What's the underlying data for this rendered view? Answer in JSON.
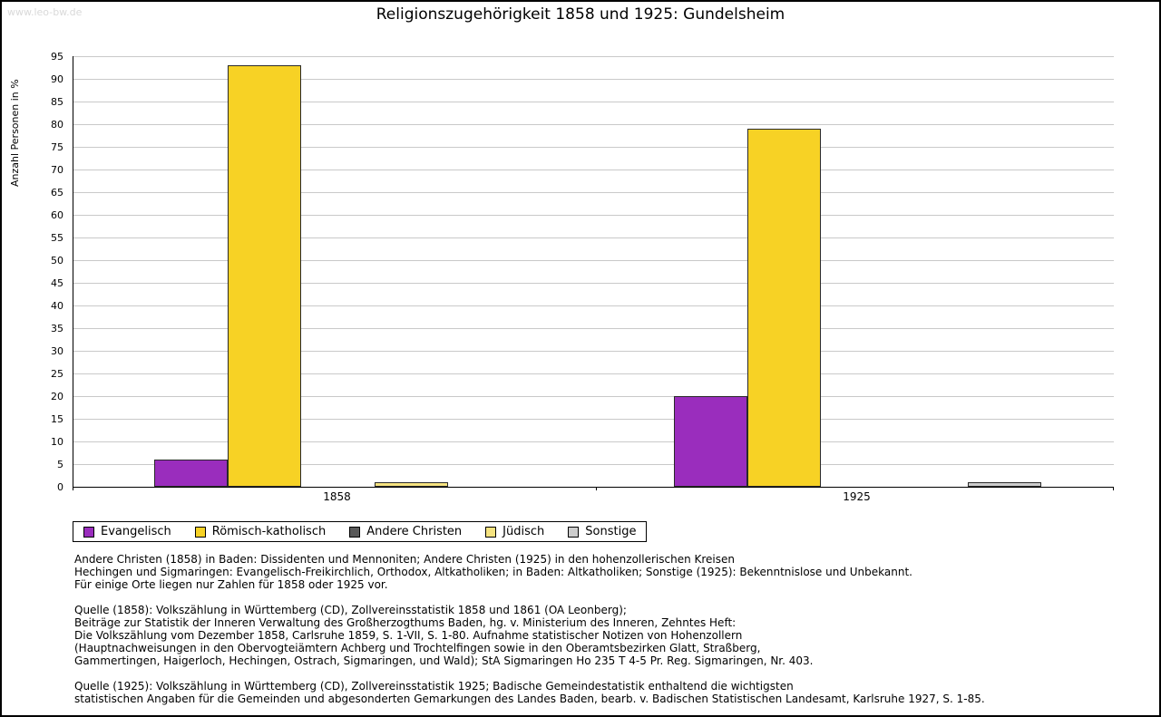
{
  "watermark": "www.leo-bw.de",
  "title": "Religionszugehörigkeit 1858 und 1925: Gundelsheim",
  "chart_data": {
    "type": "bar",
    "title": "Religionszugehörigkeit 1858 und 1925: Gundelsheim",
    "xlabel": "",
    "ylabel": "Anzahl Personen in %",
    "ylim": [
      0,
      95
    ],
    "ytick_step": 5,
    "grid": true,
    "legend_position": "bottom-left",
    "categories": [
      "1858",
      "1925"
    ],
    "series": [
      {
        "name": "Evangelisch",
        "color": "#9a2dbd",
        "values": [
          6,
          20
        ]
      },
      {
        "name": "Römisch-katholisch",
        "color": "#f7d225",
        "values": [
          93,
          79
        ]
      },
      {
        "name": "Andere Christen",
        "color": "#595959",
        "values": [
          0,
          0
        ]
      },
      {
        "name": "Jüdisch",
        "color": "#f6e380",
        "values": [
          1,
          0
        ]
      },
      {
        "name": "Sonstige",
        "color": "#cccccc",
        "values": [
          0,
          1
        ]
      }
    ]
  },
  "footnotes": [
    "Andere Christen (1858) in Baden: Dissidenten und Mennoniten; Andere Christen (1925) in den hohenzollerischen Kreisen",
    "Hechingen und Sigmaringen: Evangelisch-Freikirchlich, Orthodox, Altkatholiken; in Baden: Altkatholiken; Sonstige (1925): Bekenntnislose und Unbekannt.",
    "Für einige Orte liegen nur Zahlen für 1858 oder 1925 vor.",
    "",
    "Quelle (1858): Volkszählung in Württemberg (CD), Zollvereinsstatistik 1858 und 1861 (OA Leonberg);",
    "Beiträge zur Statistik der Inneren Verwaltung des Großherzogthums Baden, hg. v. Ministerium des Inneren, Zehntes Heft:",
    "Die Volkszählung vom Dezember 1858, Carlsruhe 1859, S. 1-VII, S. 1-80. Aufnahme statistischer Notizen von Hohenzollern",
    "(Hauptnachweisungen in den Obervogteiämtern Achberg und Trochtelfingen sowie in den Oberamtsbezirken Glatt, Straßberg,",
    "Gammertingen, Haigerloch, Hechingen, Ostrach, Sigmaringen, und Wald); StA Sigmaringen Ho 235 T 4-5 Pr. Reg. Sigmaringen, Nr. 403.",
    "",
    "Quelle (1925): Volkszählung in Württemberg (CD), Zollvereinsstatistik 1925; Badische Gemeindestatistik enthaltend die wichtigsten",
    "statistischen Angaben für die Gemeinden und abgesonderten Gemarkungen des Landes Baden, bearb. v. Badischen Statistischen Landesamt, Karlsruhe 1927, S. 1-85."
  ]
}
